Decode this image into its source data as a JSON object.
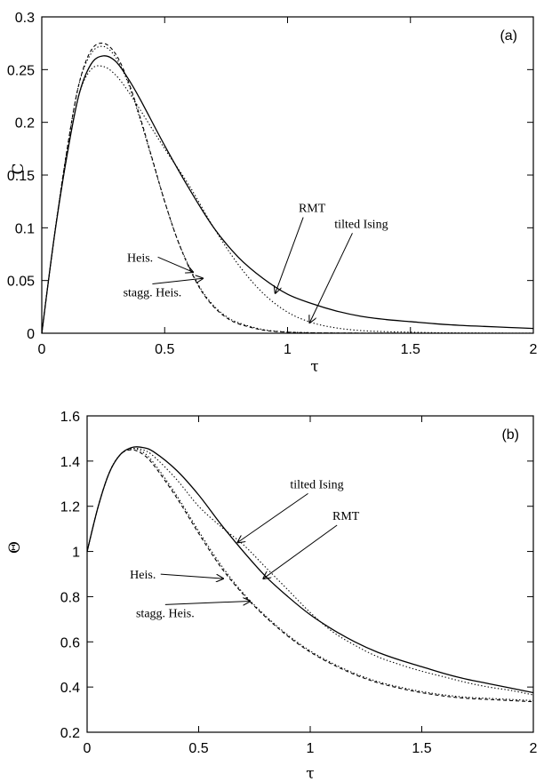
{
  "chart_data": [
    {
      "type": "line",
      "panel_label": "(a)",
      "xlabel": "τ",
      "ylabel": "C",
      "xlim": [
        0,
        2
      ],
      "ylim": [
        0,
        0.3
      ],
      "x_ticks": [
        "0",
        "0.5",
        "1",
        "1.5",
        "2"
      ],
      "y_ticks": [
        "0",
        "0.05",
        "0.1",
        "0.15",
        "0.2",
        "0.25",
        "0.3"
      ],
      "grid": false,
      "series": [
        {
          "name": "RMT",
          "style": "solid",
          "x": [
            0,
            0.05,
            0.1,
            0.15,
            0.2,
            0.25,
            0.3,
            0.35,
            0.4,
            0.5,
            0.6,
            0.7,
            0.8,
            0.9,
            1.0,
            1.1,
            1.2,
            1.3,
            1.4,
            1.5,
            1.6,
            1.7,
            1.8,
            1.9,
            2.0
          ],
          "y": [
            0,
            0.09,
            0.165,
            0.225,
            0.255,
            0.263,
            0.258,
            0.242,
            0.222,
            0.178,
            0.137,
            0.1,
            0.072,
            0.052,
            0.037,
            0.028,
            0.021,
            0.016,
            0.013,
            0.011,
            0.009,
            0.0075,
            0.0065,
            0.0055,
            0.0045
          ]
        },
        {
          "name": "tilted Ising",
          "style": "dotted",
          "x": [
            0,
            0.05,
            0.1,
            0.15,
            0.2,
            0.25,
            0.3,
            0.35,
            0.4,
            0.5,
            0.6,
            0.7,
            0.8,
            0.9,
            1.0,
            1.1,
            1.2,
            1.3,
            1.4,
            1.5,
            1.6,
            1.7,
            1.8,
            1.9,
            2.0
          ],
          "y": [
            0,
            0.09,
            0.165,
            0.225,
            0.25,
            0.253,
            0.245,
            0.23,
            0.212,
            0.175,
            0.14,
            0.1,
            0.065,
            0.038,
            0.02,
            0.01,
            0.005,
            0.0025,
            0.0015,
            0.001,
            0.0005,
            0.0003,
            0.0002,
            0.0001,
            0
          ]
        },
        {
          "name": "Heis.",
          "style": "dashed",
          "x": [
            0,
            0.05,
            0.1,
            0.15,
            0.2,
            0.25,
            0.3,
            0.35,
            0.4,
            0.45,
            0.5,
            0.55,
            0.6,
            0.65,
            0.7,
            0.75,
            0.8,
            0.9,
            1.0,
            1.1,
            1.2,
            1.3,
            1.5,
            2.0
          ],
          "y": [
            0,
            0.09,
            0.17,
            0.235,
            0.268,
            0.275,
            0.265,
            0.24,
            0.205,
            0.165,
            0.125,
            0.09,
            0.062,
            0.04,
            0.025,
            0.015,
            0.009,
            0.003,
            0.001,
            0.0004,
            0.0002,
            0.0001,
            0,
            0
          ]
        },
        {
          "name": "stagg. Heis.",
          "style": "dotted",
          "x": [
            0,
            0.05,
            0.1,
            0.15,
            0.2,
            0.25,
            0.3,
            0.35,
            0.4,
            0.45,
            0.5,
            0.55,
            0.6,
            0.65,
            0.7,
            0.75,
            0.8,
            0.9,
            1.0,
            1.1,
            1.2,
            1.3,
            1.5,
            2.0
          ],
          "y": [
            0,
            0.09,
            0.17,
            0.235,
            0.265,
            0.272,
            0.262,
            0.238,
            0.203,
            0.164,
            0.125,
            0.09,
            0.063,
            0.041,
            0.026,
            0.016,
            0.01,
            0.0035,
            0.0012,
            0.0005,
            0.0002,
            0.0001,
            0,
            0
          ]
        }
      ],
      "annotations": [
        {
          "text": "RMT",
          "series": "RMT",
          "tx": 1.1,
          "ty": 0.115,
          "ax": 0.95,
          "ay": 0.038
        },
        {
          "text": "tilted Ising",
          "series": "tilted Ising",
          "tx": 1.3,
          "ty": 0.1,
          "ax": 1.09,
          "ay": 0.01
        },
        {
          "text": "Heis.",
          "series": "Heis.",
          "tx": 0.4,
          "ty": 0.068,
          "ax": 0.615,
          "ay": 0.058
        },
        {
          "text": "stagg. Heis.",
          "series": "stagg. Heis.",
          "tx": 0.45,
          "ty": 0.035,
          "ax": 0.655,
          "ay": 0.052
        }
      ]
    },
    {
      "type": "line",
      "panel_label": "(b)",
      "xlabel": "τ",
      "ylabel": "Θ",
      "xlim": [
        0,
        2
      ],
      "ylim": [
        0.2,
        1.6
      ],
      "x_ticks": [
        "0",
        "0.5",
        "1",
        "1.5",
        "2"
      ],
      "y_ticks": [
        "0.2",
        "0.4",
        "0.6",
        "0.8",
        "1",
        "1.2",
        "1.4",
        "1.6"
      ],
      "grid": false,
      "series": [
        {
          "name": "RMT",
          "style": "solid",
          "x": [
            0,
            0.05,
            0.1,
            0.15,
            0.2,
            0.25,
            0.3,
            0.4,
            0.5,
            0.6,
            0.7,
            0.8,
            0.9,
            1.0,
            1.1,
            1.2,
            1.3,
            1.4,
            1.5,
            1.6,
            1.7,
            1.8,
            1.9,
            2.0
          ],
          "y": [
            1.0,
            1.2,
            1.35,
            1.43,
            1.46,
            1.46,
            1.44,
            1.36,
            1.25,
            1.12,
            1.0,
            0.89,
            0.8,
            0.72,
            0.655,
            0.6,
            0.555,
            0.52,
            0.49,
            0.46,
            0.435,
            0.415,
            0.395,
            0.375
          ]
        },
        {
          "name": "tilted Ising",
          "style": "dotted",
          "x": [
            0,
            0.05,
            0.1,
            0.15,
            0.2,
            0.25,
            0.3,
            0.4,
            0.5,
            0.6,
            0.7,
            0.8,
            0.9,
            1.0,
            1.1,
            1.2,
            1.3,
            1.4,
            1.5,
            1.6,
            1.7,
            1.8,
            1.9,
            2.0
          ],
          "y": [
            1.0,
            1.2,
            1.35,
            1.43,
            1.455,
            1.45,
            1.42,
            1.32,
            1.2,
            1.11,
            1.03,
            0.93,
            0.83,
            0.73,
            0.645,
            0.585,
            0.535,
            0.5,
            0.47,
            0.445,
            0.42,
            0.4,
            0.385,
            0.365
          ]
        },
        {
          "name": "Heis.",
          "style": "dashed",
          "x": [
            0,
            0.05,
            0.1,
            0.15,
            0.2,
            0.25,
            0.3,
            0.4,
            0.5,
            0.6,
            0.7,
            0.8,
            0.9,
            1.0,
            1.1,
            1.2,
            1.3,
            1.4,
            1.5,
            1.6,
            1.7,
            1.8,
            1.9,
            2.0
          ],
          "y": [
            1.0,
            1.2,
            1.35,
            1.43,
            1.45,
            1.43,
            1.38,
            1.24,
            1.08,
            0.93,
            0.81,
            0.71,
            0.625,
            0.555,
            0.5,
            0.455,
            0.42,
            0.395,
            0.375,
            0.36,
            0.35,
            0.345,
            0.34,
            0.335
          ]
        },
        {
          "name": "stagg. Heis.",
          "style": "dotted",
          "x": [
            0,
            0.05,
            0.1,
            0.15,
            0.2,
            0.25,
            0.3,
            0.4,
            0.5,
            0.6,
            0.7,
            0.8,
            0.9,
            1.0,
            1.1,
            1.2,
            1.3,
            1.4,
            1.5,
            1.6,
            1.7,
            1.8,
            1.9,
            2.0
          ],
          "y": [
            1.0,
            1.2,
            1.35,
            1.43,
            1.455,
            1.44,
            1.39,
            1.25,
            1.09,
            0.94,
            0.815,
            0.715,
            0.63,
            0.56,
            0.505,
            0.46,
            0.425,
            0.4,
            0.38,
            0.365,
            0.355,
            0.35,
            0.345,
            0.34
          ]
        }
      ],
      "annotations": [
        {
          "text": "tilted Ising",
          "series": "tilted Ising",
          "tx": 1.03,
          "ty": 1.28,
          "ax": 0.675,
          "ay": 1.04
        },
        {
          "text": "RMT",
          "series": "RMT",
          "tx": 1.16,
          "ty": 1.14,
          "ax": 0.79,
          "ay": 0.88
        },
        {
          "text": "Heis.",
          "series": "Heis.",
          "tx": 0.25,
          "ty": 0.88,
          "ax": 0.61,
          "ay": 0.88
        },
        {
          "text": "stagg. Heis.",
          "series": "stagg. Heis.",
          "tx": 0.35,
          "ty": 0.71,
          "ax": 0.73,
          "ay": 0.78
        }
      ]
    }
  ]
}
